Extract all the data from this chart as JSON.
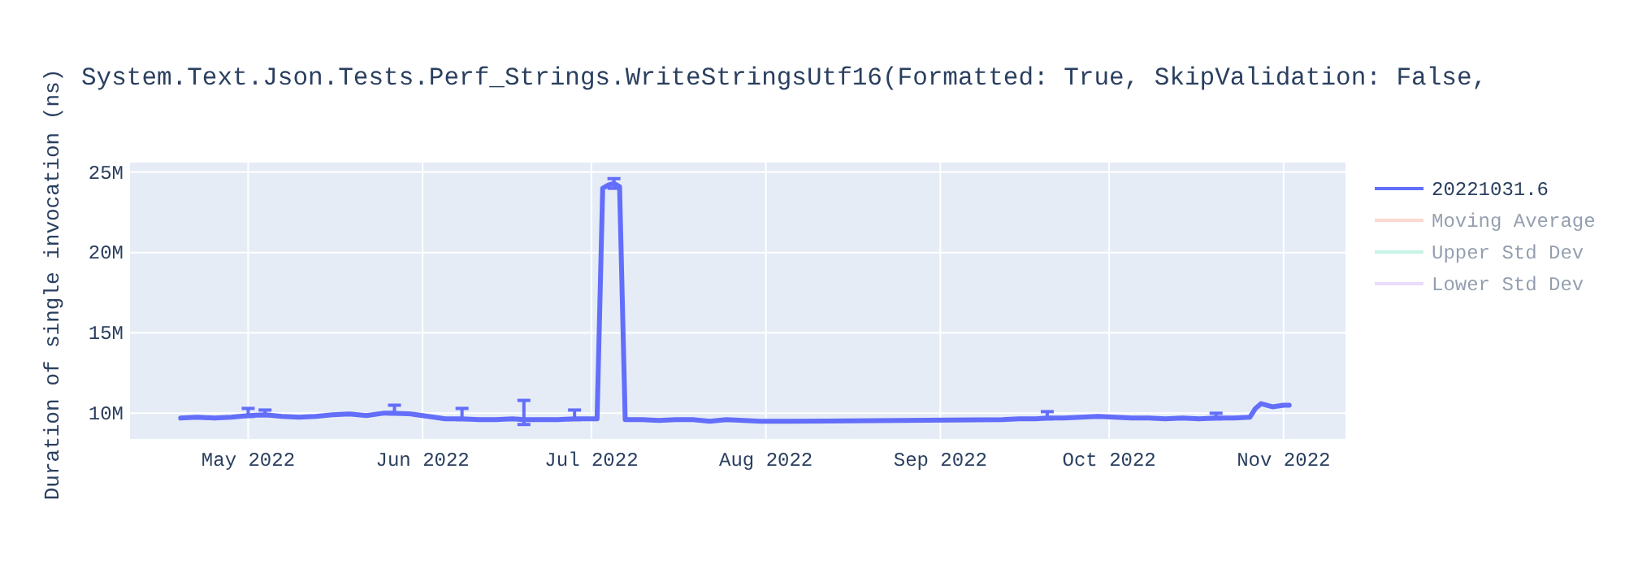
{
  "chart_data": {
    "type": "line",
    "title": "System.Text.Json.Tests.Perf_Strings.WriteStringsUtf16(Formatted: True, SkipValidation: False,",
    "ylabel": "Duration of single invocation (ns)",
    "xlim": [
      "2022-04-10",
      "2022-11-12"
    ],
    "xticks": [
      {
        "value": "2022-05-01",
        "label": "May 2022"
      },
      {
        "value": "2022-06-01",
        "label": "Jun 2022"
      },
      {
        "value": "2022-07-01",
        "label": "Jul 2022"
      },
      {
        "value": "2022-08-01",
        "label": "Aug 2022"
      },
      {
        "value": "2022-09-01",
        "label": "Sep 2022"
      },
      {
        "value": "2022-10-01",
        "label": "Oct 2022"
      },
      {
        "value": "2022-11-01",
        "label": "Nov 2022"
      }
    ],
    "ylim": [
      8400000,
      25600000
    ],
    "yticks": [
      {
        "value": 10000000,
        "label": "10M"
      },
      {
        "value": 15000000,
        "label": "15M"
      },
      {
        "value": 20000000,
        "label": "20M"
      },
      {
        "value": 25000000,
        "label": "25M"
      }
    ],
    "grid": true,
    "legend": "right",
    "marker": "none",
    "line_style": "solid",
    "x": [
      "2022-04-19",
      "2022-04-22",
      "2022-04-25",
      "2022-04-28",
      "2022-05-01",
      "2022-05-04",
      "2022-05-07",
      "2022-05-10",
      "2022-05-13",
      "2022-05-16",
      "2022-05-19",
      "2022-05-22",
      "2022-05-25",
      "2022-05-27",
      "2022-05-30",
      "2022-06-02",
      "2022-06-05",
      "2022-06-08",
      "2022-06-11",
      "2022-06-14",
      "2022-06-17",
      "2022-06-19",
      "2022-06-22",
      "2022-06-25",
      "2022-06-28",
      "2022-07-01",
      "2022-07-02",
      "2022-07-03",
      "2022-07-04",
      "2022-07-05",
      "2022-07-06",
      "2022-07-07",
      "2022-07-10",
      "2022-07-13",
      "2022-07-16",
      "2022-07-19",
      "2022-07-22",
      "2022-07-25",
      "2022-07-28",
      "2022-07-31",
      "2022-08-03",
      "2022-08-05",
      "2022-09-12",
      "2022-09-15",
      "2022-09-18",
      "2022-09-20",
      "2022-09-23",
      "2022-09-26",
      "2022-09-29",
      "2022-10-02",
      "2022-10-05",
      "2022-10-08",
      "2022-10-11",
      "2022-10-14",
      "2022-10-17",
      "2022-10-20",
      "2022-10-23",
      "2022-10-26",
      "2022-10-27",
      "2022-10-28",
      "2022-10-30",
      "2022-11-01",
      "2022-11-02"
    ],
    "series": [
      {
        "name": "20221031.6",
        "color": "#636efa",
        "values": [
          9700000,
          9750000,
          9700000,
          9750000,
          9850000,
          9900000,
          9800000,
          9750000,
          9800000,
          9900000,
          9950000,
          9850000,
          10000000,
          10000000,
          9950000,
          9800000,
          9650000,
          9650000,
          9600000,
          9600000,
          9650000,
          9600000,
          9600000,
          9600000,
          9650000,
          9650000,
          9650000,
          24000000,
          24200000,
          24300000,
          24100000,
          9600000,
          9600000,
          9550000,
          9600000,
          9600000,
          9500000,
          9600000,
          9550000,
          9500000,
          9500000,
          9500000,
          9600000,
          9650000,
          9650000,
          9700000,
          9700000,
          9750000,
          9800000,
          9750000,
          9700000,
          9700000,
          9650000,
          9700000,
          9650000,
          9700000,
          9700000,
          9750000,
          10300000,
          10600000,
          10400000,
          10500000,
          10500000
        ],
        "errors": [
          null,
          null,
          null,
          null,
          [
            9800000,
            10300000
          ],
          [
            9850000,
            10200000
          ],
          null,
          null,
          null,
          null,
          null,
          null,
          null,
          [
            9950000,
            10500000
          ],
          null,
          null,
          null,
          [
            9600000,
            10300000
          ],
          null,
          null,
          null,
          [
            9300000,
            10800000
          ],
          null,
          null,
          [
            9600000,
            10200000
          ],
          null,
          null,
          null,
          null,
          [
            24000000,
            24600000
          ],
          null,
          null,
          null,
          null,
          null,
          null,
          null,
          null,
          null,
          null,
          null,
          null,
          null,
          null,
          null,
          [
            9650000,
            10100000
          ],
          null,
          null,
          null,
          null,
          null,
          null,
          null,
          null,
          null,
          [
            9650000,
            10000000
          ],
          null,
          null,
          null,
          null,
          null,
          null,
          null
        ]
      },
      {
        "name": "Moving Average",
        "color": "#f9b4a4",
        "values": [
          null,
          null,
          null,
          null,
          null,
          null,
          null,
          null,
          null,
          null,
          null,
          null,
          null,
          null,
          null,
          null,
          null,
          null,
          null,
          null,
          null,
          null,
          null,
          null,
          null,
          null,
          null,
          null,
          null,
          null,
          null,
          null,
          null,
          null,
          null,
          null,
          null,
          null,
          null,
          null,
          null,
          null,
          null,
          null,
          null,
          null,
          null,
          null,
          null,
          null,
          null,
          null,
          null,
          null,
          null,
          null,
          null,
          null,
          null,
          null,
          null,
          null,
          null
        ]
      },
      {
        "name": "Upper Std Dev",
        "color": "#8ee8cc",
        "values": [
          null,
          null,
          null,
          null,
          null,
          null,
          null,
          null,
          null,
          null,
          null,
          null,
          null,
          null,
          null,
          null,
          null,
          null,
          null,
          null,
          null,
          null,
          null,
          null,
          null,
          null,
          null,
          null,
          null,
          null,
          null,
          null,
          null,
          null,
          null,
          null,
          null,
          null,
          null,
          null,
          null,
          null,
          null,
          null,
          null,
          null,
          null,
          null,
          null,
          null,
          null,
          null,
          null,
          null,
          null,
          null,
          null,
          null,
          null,
          null,
          null,
          null,
          null
        ]
      },
      {
        "name": "Lower Std Dev",
        "color": "#d2bbfc",
        "values": [
          null,
          null,
          null,
          null,
          null,
          null,
          null,
          null,
          null,
          null,
          null,
          null,
          null,
          null,
          null,
          null,
          null,
          null,
          null,
          null,
          null,
          null,
          null,
          null,
          null,
          null,
          null,
          null,
          null,
          null,
          null,
          null,
          null,
          null,
          null,
          null,
          null,
          null,
          null,
          null,
          null,
          null,
          null,
          null,
          null,
          null,
          null,
          null,
          null,
          null,
          null,
          null,
          null,
          null,
          null,
          null,
          null,
          null,
          null,
          null,
          null,
          null,
          null
        ]
      }
    ]
  }
}
